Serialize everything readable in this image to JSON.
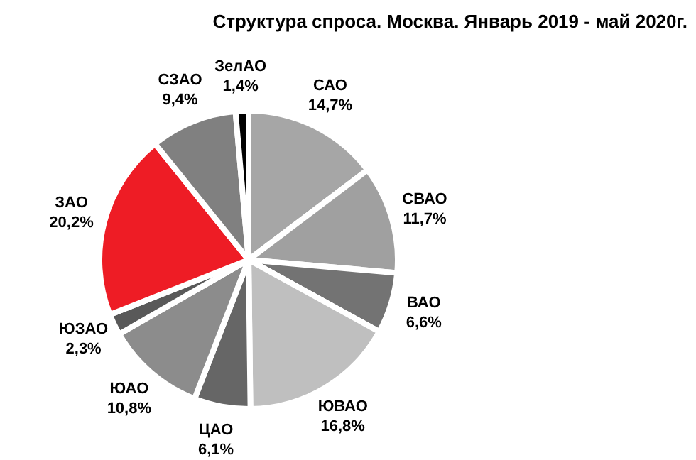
{
  "chart_data": {
    "type": "pie",
    "title": "Структура спроса. Москва. Январь 2019 - май 2020г.",
    "categories": [
      "САО",
      "СВАО",
      "ВАО",
      "ЮВАО",
      "ЦАО",
      "ЮАО",
      "ЮЗАО",
      "ЗАО",
      "СЗАО",
      "ЗелАО"
    ],
    "values": [
      14.7,
      11.7,
      6.6,
      16.8,
      6.1,
      10.8,
      2.3,
      20.2,
      9.4,
      1.4
    ],
    "value_labels": [
      "14,7%",
      "11,7%",
      "6,6%",
      "16,8%",
      "6,1%",
      "10,8%",
      "2,3%",
      "20,2%",
      "9,4%",
      "1,4%"
    ],
    "colors": [
      "#a6a6a6",
      "#a0a0a0",
      "#737373",
      "#bfbfbf",
      "#666666",
      "#8c8c8c",
      "#595959",
      "#ee1c25",
      "#808080",
      "#000000"
    ],
    "legend": false
  }
}
